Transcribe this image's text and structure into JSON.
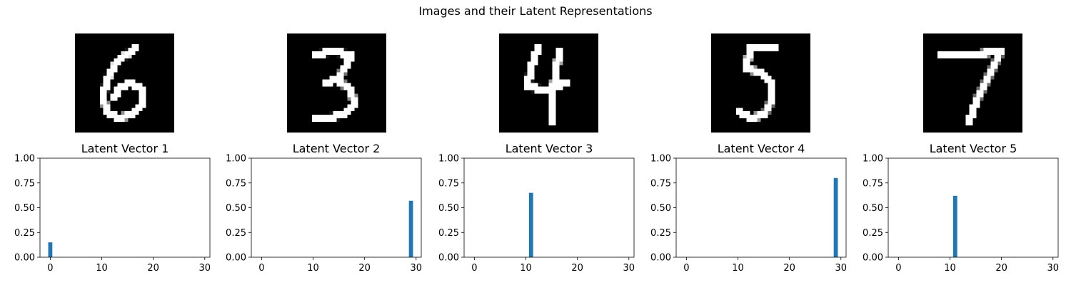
{
  "figure": {
    "title": "Images and their Latent Representations"
  },
  "colors": {
    "bar": "#1f77b4",
    "axis": "#000000",
    "image_background": "#000000",
    "stroke": "#ffffff"
  },
  "digits": [
    {
      "label": "6"
    },
    {
      "label": "3"
    },
    {
      "label": "4"
    },
    {
      "label": "5"
    },
    {
      "label": "7"
    }
  ],
  "chart_data": [
    {
      "type": "bar",
      "title": "Latent Vector 1",
      "x": [
        0
      ],
      "values": [
        0.15
      ],
      "xlim": [
        -2,
        31
      ],
      "ylim": [
        0,
        1.0
      ],
      "xticks": [
        "0",
        "10",
        "20",
        "30"
      ],
      "yticks": [
        "0.00",
        "0.25",
        "0.50",
        "0.75",
        "1.00"
      ],
      "grid": false
    },
    {
      "type": "bar",
      "title": "Latent Vector 2",
      "x": [
        29
      ],
      "values": [
        0.57
      ],
      "xlim": [
        -2,
        31
      ],
      "ylim": [
        0,
        1.0
      ],
      "xticks": [
        "0",
        "10",
        "20",
        "30"
      ],
      "yticks": [
        "0.00",
        "0.25",
        "0.50",
        "0.75",
        "1.00"
      ],
      "grid": false
    },
    {
      "type": "bar",
      "title": "Latent Vector 3",
      "x": [
        11
      ],
      "values": [
        0.65
      ],
      "xlim": [
        -2,
        31
      ],
      "ylim": [
        0,
        1.0
      ],
      "xticks": [
        "0",
        "10",
        "20",
        "30"
      ],
      "yticks": [
        "0.00",
        "0.25",
        "0.50",
        "0.75",
        "1.00"
      ],
      "grid": false
    },
    {
      "type": "bar",
      "title": "Latent Vector 4",
      "x": [
        29
      ],
      "values": [
        0.8
      ],
      "xlim": [
        -2,
        31
      ],
      "ylim": [
        0,
        1.0
      ],
      "xticks": [
        "0",
        "10",
        "20",
        "30"
      ],
      "yticks": [
        "0.00",
        "0.25",
        "0.50",
        "0.75",
        "1.00"
      ],
      "grid": false
    },
    {
      "type": "bar",
      "title": "Latent Vector 5",
      "x": [
        11
      ],
      "values": [
        0.62
      ],
      "xlim": [
        -2,
        31
      ],
      "ylim": [
        0,
        1.0
      ],
      "xticks": [
        "0",
        "10",
        "20",
        "30"
      ],
      "yticks": [
        "0.00",
        "0.25",
        "0.50",
        "0.75",
        "1.00"
      ],
      "grid": false
    }
  ]
}
